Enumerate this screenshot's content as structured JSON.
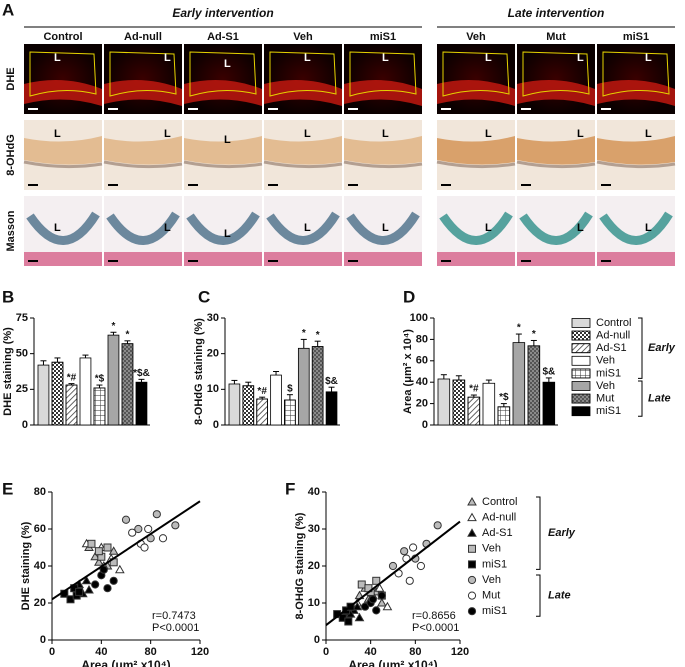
{
  "panel_a": {
    "label": "A",
    "groups": [
      "Early intervention",
      "Late intervention"
    ],
    "columns": [
      "Control",
      "Ad-null",
      "Ad-S1",
      "Veh",
      "miS1",
      "Veh",
      "Mut",
      "miS1"
    ],
    "rows": [
      "DHE",
      "8-OHdG",
      "Masson"
    ],
    "lumen": "L"
  },
  "chart_data": [
    {
      "type": "bar",
      "label": "B",
      "y_label": "DHE staining (%)",
      "categories": [
        "Control",
        "Ad-null",
        "Ad-S1",
        "Veh",
        "miS1",
        "Veh",
        "Mut",
        "miS1"
      ],
      "legend_groups": [
        "Early",
        "Late"
      ],
      "colors": [
        "#d9d9d9",
        "#ffffff",
        "#ffffff",
        "#ffffff",
        "#ffffff",
        "#a6a6a6",
        "#8a8a8a",
        "#000000"
      ],
      "patterns": [
        "solid",
        "check",
        "hatch",
        "solid",
        "grid",
        "solid",
        "check",
        "solid"
      ],
      "values": [
        42,
        44,
        28,
        47,
        26,
        63,
        57,
        30
      ],
      "errors": [
        3,
        3,
        1,
        2,
        2,
        2,
        2,
        2
      ],
      "annotations": [
        null,
        null,
        "*#",
        null,
        "*$",
        "*",
        "*",
        "*$&"
      ],
      "ylim": [
        0,
        75
      ],
      "yticks": [
        0,
        25,
        50,
        75
      ]
    },
    {
      "type": "bar",
      "label": "C",
      "y_label": "8-OHdG staining (%)",
      "colors": [
        "#d9d9d9",
        "#ffffff",
        "#ffffff",
        "#ffffff",
        "#ffffff",
        "#a6a6a6",
        "#8a8a8a",
        "#000000"
      ],
      "patterns": [
        "solid",
        "check",
        "hatch",
        "solid",
        "grid",
        "solid",
        "check",
        "solid"
      ],
      "values": [
        11.5,
        11,
        7.3,
        14,
        7,
        21.5,
        22,
        9.3
      ],
      "errors": [
        1,
        1,
        0.5,
        1,
        1.5,
        2.5,
        1.5,
        1.3
      ],
      "annotations": [
        null,
        null,
        "*#",
        null,
        "$",
        "*",
        "*",
        "$&"
      ],
      "ylim": [
        0,
        30
      ],
      "yticks": [
        0,
        10,
        20,
        30
      ]
    },
    {
      "type": "bar",
      "label": "D",
      "y_label": "Area (μm² x 10⁴)",
      "colors": [
        "#d9d9d9",
        "#ffffff",
        "#ffffff",
        "#ffffff",
        "#ffffff",
        "#a6a6a6",
        "#8a8a8a",
        "#000000"
      ],
      "patterns": [
        "solid",
        "check",
        "hatch",
        "solid",
        "grid",
        "solid",
        "check",
        "solid"
      ],
      "values": [
        43,
        42,
        26,
        39,
        17,
        77,
        74,
        40
      ],
      "errors": [
        4,
        4,
        2,
        3,
        3,
        8,
        5,
        4
      ],
      "annotations": [
        null,
        null,
        "*#",
        null,
        "*$",
        "*",
        "*",
        "$&"
      ],
      "ylim": [
        0,
        100
      ],
      "yticks": [
        0,
        20,
        40,
        60,
        80,
        100
      ]
    },
    {
      "type": "scatter",
      "label": "E",
      "x_label": "Area (μm² x10⁴)",
      "y_label": "DHE staining (%)",
      "legend_groups": [
        "Early",
        "Late"
      ],
      "xlim": [
        0,
        120
      ],
      "xticks": [
        0,
        40,
        80,
        120
      ],
      "ylim": [
        0,
        80
      ],
      "yticks": [
        0,
        20,
        40,
        60,
        80
      ],
      "fit": {
        "x": [
          0,
          120
        ],
        "y": [
          22,
          75
        ]
      },
      "stats": [
        "r=0.7473",
        "P<0.0001"
      ],
      "series": [
        {
          "name": "Control",
          "marker": "triangle",
          "color": "#bbbbbb",
          "x": [
            30,
            38,
            45,
            50,
            35
          ],
          "y": [
            50,
            42,
            40,
            48,
            45
          ]
        },
        {
          "name": "Ad-null",
          "marker": "triangle",
          "color": "#ffffff",
          "x": [
            28,
            42,
            48,
            40,
            55
          ],
          "y": [
            52,
            40,
            44,
            50,
            38
          ]
        },
        {
          "name": "Ad-S1",
          "marker": "triangle",
          "color": "#000000",
          "x": [
            20,
            25,
            30,
            28,
            22
          ],
          "y": [
            28,
            25,
            27,
            32,
            30
          ]
        },
        {
          "name": "Veh",
          "marker": "square",
          "color": "#bbbbbb",
          "x": [
            32,
            40,
            45,
            38,
            50
          ],
          "y": [
            52,
            45,
            50,
            48,
            42
          ]
        },
        {
          "name": "miS1",
          "marker": "square",
          "color": "#000000",
          "x": [
            10,
            15,
            18,
            20,
            22
          ],
          "y": [
            25,
            22,
            28,
            24,
            26
          ]
        },
        {
          "name": "Veh",
          "marker": "circle",
          "color": "#bbbbbb",
          "x": [
            60,
            70,
            80,
            85,
            100
          ],
          "y": [
            65,
            60,
            55,
            68,
            62
          ]
        },
        {
          "name": "Mut",
          "marker": "circle",
          "color": "#ffffff",
          "x": [
            65,
            72,
            78,
            90,
            75
          ],
          "y": [
            58,
            52,
            60,
            55,
            50
          ]
        },
        {
          "name": "miS1",
          "marker": "circle",
          "color": "#000000",
          "x": [
            35,
            40,
            45,
            50,
            42
          ],
          "y": [
            30,
            35,
            28,
            32,
            38
          ]
        }
      ]
    },
    {
      "type": "scatter",
      "label": "F",
      "x_label": "Area (μm² x10⁴)",
      "y_label": "8-OHdG staining (%)",
      "xlim": [
        0,
        120
      ],
      "xticks": [
        0,
        40,
        80,
        120
      ],
      "ylim": [
        0,
        40
      ],
      "yticks": [
        0,
        10,
        20,
        30,
        40
      ],
      "fit": {
        "x": [
          0,
          120
        ],
        "y": [
          4,
          32
        ]
      },
      "stats": [
        "r=0.8656",
        "P<0.0001"
      ],
      "series": [
        {
          "marker": "triangle",
          "color": "#bbbbbb",
          "x": [
            30,
            38,
            45,
            50,
            35
          ],
          "y": [
            12,
            11,
            13,
            10,
            14
          ]
        },
        {
          "marker": "triangle",
          "color": "#ffffff",
          "x": [
            28,
            42,
            48,
            40,
            55
          ],
          "y": [
            10,
            12,
            14,
            11,
            9
          ]
        },
        {
          "marker": "triangle",
          "color": "#000000",
          "x": [
            20,
            25,
            30,
            28,
            22
          ],
          "y": [
            7,
            8,
            6,
            9,
            7
          ]
        },
        {
          "marker": "square",
          "color": "#bbbbbb",
          "x": [
            32,
            40,
            45,
            38,
            50
          ],
          "y": [
            15,
            13,
            16,
            14,
            12
          ]
        },
        {
          "marker": "square",
          "color": "#000000",
          "x": [
            10,
            15,
            18,
            20,
            22
          ],
          "y": [
            7,
            6,
            8,
            5,
            9
          ]
        },
        {
          "marker": "circle",
          "color": "#bbbbbb",
          "x": [
            60,
            70,
            80,
            90,
            100
          ],
          "y": [
            20,
            24,
            22,
            26,
            31
          ]
        },
        {
          "marker": "circle",
          "color": "#ffffff",
          "x": [
            65,
            72,
            78,
            85,
            75
          ],
          "y": [
            18,
            22,
            25,
            20,
            16
          ]
        },
        {
          "marker": "circle",
          "color": "#000000",
          "x": [
            35,
            40,
            45,
            50,
            42
          ],
          "y": [
            9,
            10,
            8,
            12,
            11
          ]
        }
      ]
    }
  ]
}
